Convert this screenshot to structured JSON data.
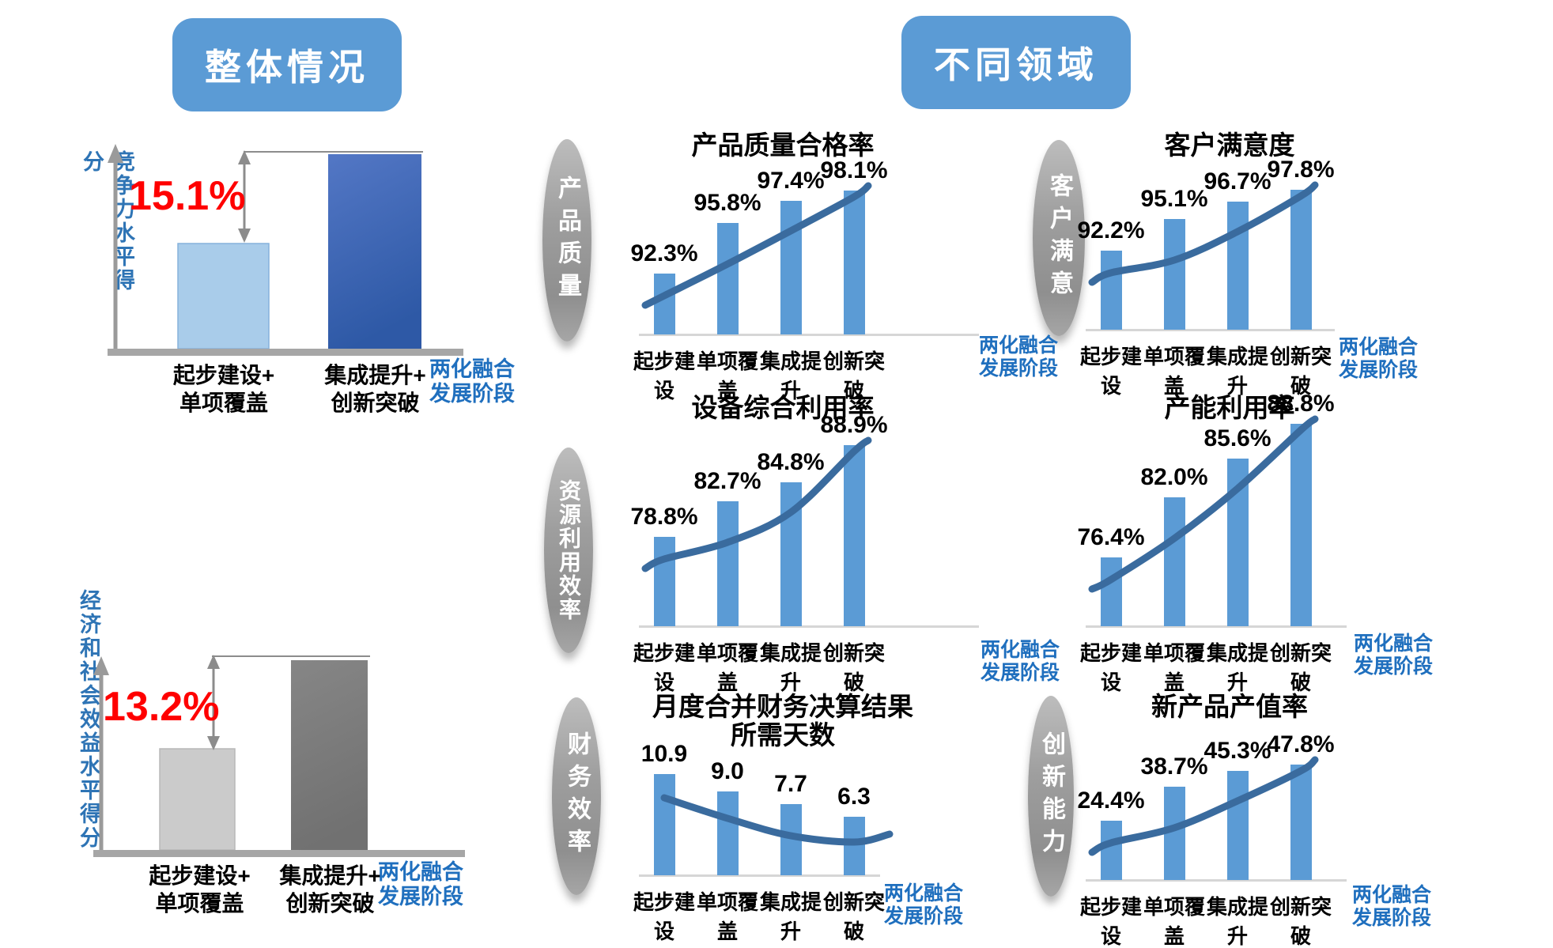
{
  "colors": {
    "header_bg": "#5B9BD5",
    "mini_bar_blue": "#5B9BD5",
    "trend_line_blue": "#3A6B9E",
    "stage_text_blue": "#1F6FBE",
    "axis_label_blue": "#2E74B5",
    "delta_red": "#FF0000",
    "bar_light_blue": "#A9CCEA",
    "bar_dark_blue_top": "#5377C5",
    "bar_dark_blue_bottom": "#2E59A6",
    "bar_light_gray": "#CBCBCB",
    "bar_dark_gray": "#7C7C7C",
    "ellipse_gray": "#9E9E9E"
  },
  "left_section": {
    "header": "整体情况",
    "top_chart": {
      "y_axis_label": "竞争力水平得分",
      "delta": "15.1%",
      "categories": [
        "起步建设+\n单项覆盖",
        "集成提升+\n创新突破"
      ],
      "stage_label": "两化融合\n发展阶段"
    },
    "bottom_chart": {
      "y_axis_label": "经济和社会效益水平得分",
      "delta": "13.2%",
      "categories": [
        "起步建设+\n单项覆盖",
        "集成提升+\n创新突破"
      ],
      "stage_label": "两化融合\n发展阶段"
    }
  },
  "right_section": {
    "header": "不同领域",
    "groups": [
      "产品质量",
      "客户满意",
      "资源利用效率",
      "财务效率",
      "创新能力"
    ]
  },
  "chart_data": [
    {
      "type": "bar",
      "section": "整体情况",
      "ylabel": "竞争力水平得分",
      "xlabel": "两化融合发展阶段",
      "categories": [
        "起步建设+单项覆盖",
        "集成提升+创新突破"
      ],
      "values_shown_on_chart": false,
      "difference_annotation": "15.1%",
      "relative_bar_heights": [
        0.54,
        1.0
      ]
    },
    {
      "type": "bar",
      "section": "整体情况",
      "ylabel": "经济和社会效益水平得分",
      "xlabel": "两化融合发展阶段",
      "categories": [
        "起步建设+单项覆盖",
        "集成提升+创新突破"
      ],
      "values_shown_on_chart": false,
      "difference_annotation": "13.2%",
      "relative_bar_heights": [
        0.54,
        1.0
      ]
    },
    {
      "type": "bar",
      "trendline": true,
      "group": "产品质量",
      "title": "产品质量合格率",
      "categories": [
        "起步建设",
        "单项覆盖",
        "集成提升",
        "创新突破"
      ],
      "values": [
        92.3,
        95.8,
        97.4,
        98.1
      ],
      "value_labels": [
        "92.3%",
        "95.8%",
        "97.4%",
        "98.1%"
      ],
      "unit": "%",
      "xlabel": "两化融合发展阶段",
      "stage_label": "两化融合\n发展阶段",
      "ylim": [
        88,
        100
      ]
    },
    {
      "type": "bar",
      "trendline": true,
      "group": "客户满意",
      "title": "客户满意度",
      "categories": [
        "起步建设",
        "单项覆盖",
        "集成提升",
        "创新突破"
      ],
      "values": [
        92.2,
        95.1,
        96.7,
        97.8
      ],
      "value_labels": [
        "92.2%",
        "95.1%",
        "96.7%",
        "97.8%"
      ],
      "unit": "%",
      "xlabel": "两化融合发展阶段",
      "stage_label": "两化融合\n发展阶段",
      "ylim": [
        85,
        100
      ]
    },
    {
      "type": "bar",
      "trendline": true,
      "group": "资源利用效率",
      "title": "设备综合利用率",
      "categories": [
        "起步建设",
        "单项覆盖",
        "集成提升",
        "创新突破"
      ],
      "values": [
        78.8,
        82.7,
        84.8,
        88.9
      ],
      "value_labels": [
        "78.8%",
        "82.7%",
        "84.8%",
        "88.9%"
      ],
      "unit": "%",
      "xlabel": "两化融合发展阶段",
      "stage_label": "两化融合\n发展阶段",
      "ylim": [
        69,
        90
      ]
    },
    {
      "type": "bar",
      "trendline": true,
      "group": "资源利用效率",
      "title": "产能利用率",
      "categories": [
        "起步建设",
        "单项覆盖",
        "集成提升",
        "创新突破"
      ],
      "values": [
        76.4,
        82.0,
        85.6,
        88.8
      ],
      "value_labels": [
        "76.4%",
        "82.0%",
        "85.6%",
        "88.8%"
      ],
      "unit": "%",
      "xlabel": "两化融合发展阶段",
      "stage_label": "两化融合\n发展阶段",
      "ylim": [
        70,
        90
      ]
    },
    {
      "type": "bar",
      "trendline": true,
      "group": "财务效率",
      "title": "月度合并财务决算结果\n所需天数",
      "categories": [
        "起步建设",
        "单项覆盖",
        "集成提升",
        "创新突破"
      ],
      "values": [
        10.9,
        9.0,
        7.7,
        6.3
      ],
      "value_labels": [
        "10.9",
        "9.0",
        "7.7",
        "6.3"
      ],
      "unit": "天",
      "xlabel": "两化融合发展阶段",
      "stage_label": "两化融合\n发展阶段",
      "ylim": [
        0,
        12
      ]
    },
    {
      "type": "bar",
      "trendline": true,
      "group": "创新能力",
      "title": "新产品产值率",
      "categories": [
        "起步建设",
        "单项覆盖",
        "集成提升",
        "创新突破"
      ],
      "values": [
        24.4,
        38.7,
        45.3,
        47.8
      ],
      "value_labels": [
        "24.4%",
        "38.7%",
        "45.3%",
        "47.8%"
      ],
      "unit": "%",
      "xlabel": "两化融合发展阶段",
      "stage_label": "两化融合\n发展阶段",
      "ylim": [
        0,
        50
      ]
    }
  ]
}
